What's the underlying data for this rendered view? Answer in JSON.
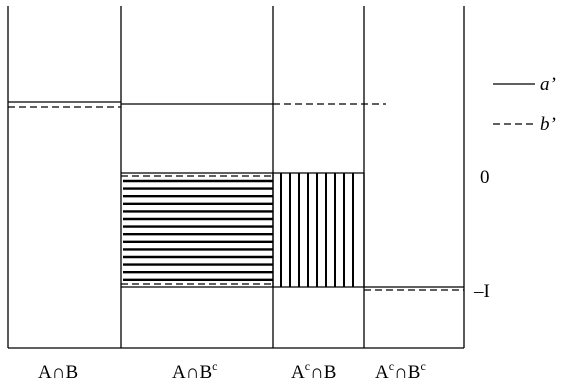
{
  "regions": [
    {
      "label": "A∩B"
    },
    {
      "label": "A∩B",
      "sup": "c"
    },
    {
      "label": "A",
      "sup": "c",
      "tail": "∩B"
    },
    {
      "label": "A",
      "sup": "c",
      "tail": "∩B",
      "sup2": "c"
    }
  ],
  "legend": [
    {
      "name": "a’",
      "style": "solid"
    },
    {
      "name": "b’",
      "style": "dashed"
    }
  ],
  "levels": {
    "zero": "0",
    "minus_i": "–I"
  }
}
